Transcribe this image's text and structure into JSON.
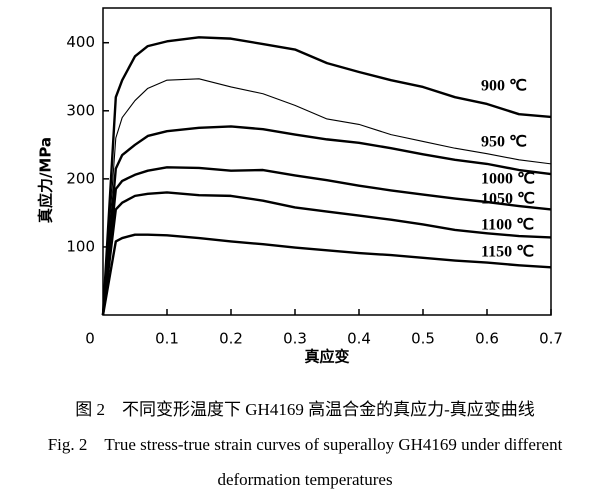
{
  "chart_data": {
    "type": "line",
    "x_label": "真应变",
    "y_label": "真应力/MPa",
    "x": [
      0,
      0.02,
      0.03,
      0.05,
      0.07,
      0.1,
      0.15,
      0.2,
      0.25,
      0.3,
      0.35,
      0.4,
      0.45,
      0.5,
      0.55,
      0.6,
      0.65,
      0.7
    ],
    "series": [
      {
        "name": "900 ℃",
        "color": "#000000",
        "line_width": 2.4,
        "values": [
          0,
          320,
          345,
          380,
          395,
          402,
          408,
          406,
          398,
          390,
          370,
          357,
          345,
          335,
          320,
          310,
          295,
          291
        ]
      },
      {
        "name": "950 ℃",
        "color": "#000000",
        "line_width": 1.1,
        "values": [
          0,
          260,
          290,
          315,
          333,
          345,
          347,
          335,
          325,
          308,
          288,
          280,
          265,
          255,
          245,
          237,
          228,
          222
        ]
      },
      {
        "name": "1000 ℃",
        "color": "#000000",
        "line_width": 2.4,
        "values": [
          0,
          215,
          235,
          250,
          263,
          270,
          275,
          277,
          273,
          265,
          258,
          253,
          245,
          236,
          228,
          222,
          213,
          207
        ]
      },
      {
        "name": "1050 ℃",
        "color": "#000000",
        "line_width": 2.4,
        "values": [
          0,
          185,
          197,
          206,
          212,
          217,
          216,
          212,
          213,
          205,
          198,
          190,
          183,
          177,
          171,
          166,
          160,
          155
        ]
      },
      {
        "name": "1100 ℃",
        "color": "#000000",
        "line_width": 2.4,
        "values": [
          0,
          155,
          165,
          175,
          178,
          180,
          176,
          175,
          168,
          158,
          152,
          146,
          140,
          133,
          125,
          120,
          116,
          114
        ]
      },
      {
        "name": "1150 ℃",
        "color": "#000000",
        "line_width": 2.4,
        "values": [
          0,
          108,
          113,
          118,
          118,
          117,
          113,
          108,
          104,
          99,
          95,
          91,
          88,
          84,
          80,
          77,
          73,
          70
        ]
      }
    ],
    "xlim": [
      0,
      0.7
    ],
    "xticks": [
      0,
      0.1,
      0.2,
      0.3,
      0.4,
      0.5,
      0.6,
      0.7
    ],
    "ylim": [
      0,
      451
    ],
    "yticks": [
      100,
      200,
      300,
      400
    ],
    "caption": [
      "图 2　不同变形温度下 GH4169 高温合金的真应力-真应变曲线",
      "Fig. 2　True stress-true strain curves of superalloy GH4169 under different",
      "deformation temperatures"
    ]
  }
}
